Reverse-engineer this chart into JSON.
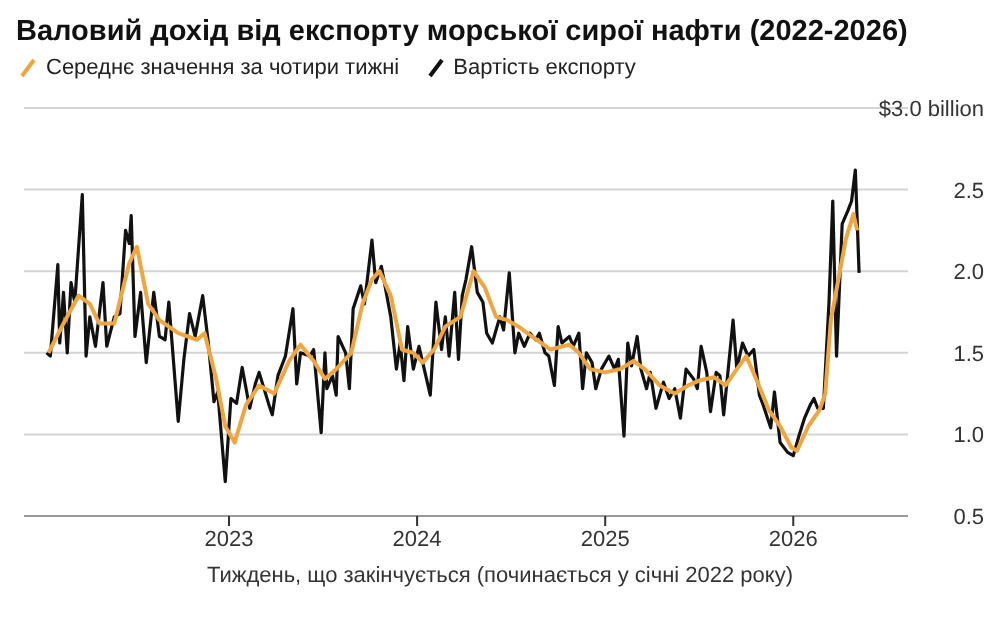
{
  "chart_data": {
    "type": "line",
    "title": "Валовий дохід від експорту морської сирої нафти (2022-2026)",
    "xlabel": "Тиждень, що закінчується (починається у січні 2022 року)",
    "xlim": [
      2021.91,
      2026.61
    ],
    "xticks": [
      2023,
      2024,
      2025,
      2026
    ],
    "ylim": [
      0.5,
      3.0
    ],
    "yticks": [
      0.5,
      {
        "value": 1.0,
        "label": "1.0"
      },
      1.5,
      {
        "value": 2.0,
        "label": "2.0"
      },
      2.5,
      {
        "value": 3.0,
        "label": "$3.0 billion"
      }
    ],
    "grid": "y",
    "legend": "top left",
    "marker": "none",
    "line_style": "solid",
    "series": [
      {
        "name": "Середнє значення за чотири тижні",
        "color": "#f0a640",
        "x": [
          2022.04,
          2022.12,
          2022.2,
          2022.26,
          2022.31,
          2022.39,
          2022.47,
          2022.51,
          2022.57,
          2022.63,
          2022.73,
          2022.83,
          2022.87,
          2022.93,
          2022.98,
          2023.03,
          2023.09,
          2023.16,
          2023.24,
          2023.32,
          2023.38,
          2023.45,
          2023.51,
          2023.57,
          2023.65,
          2023.71,
          2023.76,
          2023.8,
          2023.86,
          2023.92,
          2023.98,
          2024.03,
          2024.09,
          2024.15,
          2024.23,
          2024.3,
          2024.36,
          2024.42,
          2024.48,
          2024.54,
          2024.61,
          2024.71,
          2024.81,
          2024.86,
          2024.92,
          2025.0,
          2025.08,
          2025.15,
          2025.21,
          2025.29,
          2025.37,
          2025.44,
          2025.5,
          2025.58,
          2025.64,
          2025.7,
          2025.75,
          2025.81,
          2025.87,
          2025.93,
          2025.99,
          2026.02,
          2026.08,
          2026.14,
          2026.17,
          2026.2,
          2026.24,
          2026.28,
          2026.32,
          2026.34
        ],
        "values": [
          1.5,
          1.68,
          1.85,
          1.8,
          1.68,
          1.68,
          2.05,
          2.15,
          1.8,
          1.7,
          1.62,
          1.58,
          1.62,
          1.35,
          1.05,
          0.95,
          1.18,
          1.3,
          1.25,
          1.45,
          1.55,
          1.45,
          1.34,
          1.4,
          1.5,
          1.8,
          1.95,
          2.0,
          1.85,
          1.52,
          1.5,
          1.44,
          1.52,
          1.66,
          1.72,
          2.0,
          1.9,
          1.72,
          1.7,
          1.66,
          1.6,
          1.52,
          1.55,
          1.5,
          1.4,
          1.38,
          1.4,
          1.45,
          1.4,
          1.3,
          1.25,
          1.3,
          1.33,
          1.35,
          1.3,
          1.4,
          1.48,
          1.32,
          1.15,
          1.05,
          0.92,
          0.9,
          1.05,
          1.15,
          1.25,
          1.7,
          1.95,
          2.2,
          2.35,
          2.25
        ]
      },
      {
        "name": "Вартість експорту",
        "color": "#111111",
        "x": [
          2022.03,
          2022.05,
          2022.09,
          2022.1,
          2022.12,
          2022.14,
          2022.16,
          2022.18,
          2022.22,
          2022.24,
          2022.26,
          2022.29,
          2022.33,
          2022.35,
          2022.39,
          2022.42,
          2022.45,
          2022.47,
          2022.48,
          2022.5,
          2022.53,
          2022.56,
          2022.6,
          2022.63,
          2022.66,
          2022.68,
          2022.73,
          2022.76,
          2022.79,
          2022.82,
          2022.86,
          2022.89,
          2022.92,
          2022.94,
          2022.98,
          2023.01,
          2023.04,
          2023.07,
          2023.11,
          2023.14,
          2023.16,
          2023.21,
          2023.23,
          2023.26,
          2023.3,
          2023.34,
          2023.36,
          2023.38,
          2023.43,
          2023.45,
          2023.49,
          2023.51,
          2023.52,
          2023.55,
          2023.57,
          2023.58,
          2023.62,
          2023.64,
          2023.66,
          2023.7,
          2023.72,
          2023.76,
          2023.78,
          2023.81,
          2023.86,
          2023.89,
          2023.91,
          2023.93,
          2023.95,
          2023.98,
          2024.01,
          2024.03,
          2024.07,
          2024.1,
          2024.13,
          2024.15,
          2024.17,
          2024.2,
          2024.22,
          2024.24,
          2024.26,
          2024.29,
          2024.32,
          2024.35,
          2024.37,
          2024.4,
          2024.44,
          2024.46,
          2024.49,
          2024.52,
          2024.54,
          2024.57,
          2024.6,
          2024.63,
          2024.65,
          2024.68,
          2024.7,
          2024.73,
          2024.75,
          2024.77,
          2024.81,
          2024.83,
          2024.86,
          2024.88,
          2024.9,
          2024.93,
          2024.95,
          2024.98,
          2025.02,
          2025.05,
          2025.07,
          2025.1,
          2025.12,
          2025.14,
          2025.17,
          2025.19,
          2025.22,
          2025.24,
          2025.27,
          2025.31,
          2025.34,
          2025.37,
          2025.4,
          2025.43,
          2025.47,
          2025.49,
          2025.51,
          2025.54,
          2025.56,
          2025.59,
          2025.61,
          2025.63,
          2025.68,
          2025.7,
          2025.73,
          2025.76,
          2025.79,
          2025.82,
          2025.84,
          2025.88,
          2025.9,
          2025.93,
          2025.97,
          2026.0,
          2026.03,
          2026.06,
          2026.09,
          2026.11,
          2026.13,
          2026.16,
          2026.19,
          2026.21,
          2026.23,
          2026.26,
          2026.29,
          2026.31,
          2026.33,
          2026.35
        ],
        "values": [
          1.5,
          1.48,
          2.04,
          1.56,
          1.87,
          1.5,
          1.93,
          1.81,
          2.47,
          1.48,
          1.72,
          1.54,
          1.93,
          1.54,
          1.72,
          1.74,
          2.25,
          2.17,
          2.34,
          1.6,
          1.87,
          1.44,
          1.87,
          1.6,
          1.58,
          1.81,
          1.08,
          1.46,
          1.74,
          1.6,
          1.85,
          1.56,
          1.2,
          1.26,
          0.71,
          1.22,
          1.19,
          1.41,
          1.16,
          1.31,
          1.38,
          1.19,
          1.12,
          1.36,
          1.48,
          1.77,
          1.31,
          1.5,
          1.48,
          1.52,
          1.01,
          1.5,
          1.28,
          1.36,
          1.24,
          1.6,
          1.5,
          1.28,
          1.77,
          1.91,
          1.8,
          2.19,
          1.93,
          2.03,
          1.72,
          1.4,
          1.56,
          1.33,
          1.66,
          1.4,
          1.54,
          1.44,
          1.24,
          1.81,
          1.52,
          1.72,
          1.48,
          1.87,
          1.46,
          1.85,
          1.95,
          2.15,
          1.87,
          1.81,
          1.62,
          1.56,
          1.72,
          1.64,
          1.99,
          1.5,
          1.62,
          1.54,
          1.62,
          1.58,
          1.62,
          1.5,
          1.48,
          1.3,
          1.66,
          1.56,
          1.6,
          1.54,
          1.62,
          1.28,
          1.5,
          1.44,
          1.28,
          1.4,
          1.48,
          1.4,
          1.46,
          0.99,
          1.56,
          1.42,
          1.6,
          1.4,
          1.28,
          1.38,
          1.16,
          1.32,
          1.22,
          1.28,
          1.1,
          1.4,
          1.34,
          1.28,
          1.54,
          1.38,
          1.14,
          1.38,
          1.36,
          1.12,
          1.7,
          1.4,
          1.56,
          1.48,
          1.52,
          1.24,
          1.18,
          1.04,
          1.26,
          0.95,
          0.89,
          0.87,
          0.99,
          1.1,
          1.18,
          1.22,
          1.16,
          1.16,
          1.81,
          2.43,
          1.48,
          2.29,
          2.37,
          2.43,
          2.62,
          1.99
        ]
      }
    ]
  }
}
